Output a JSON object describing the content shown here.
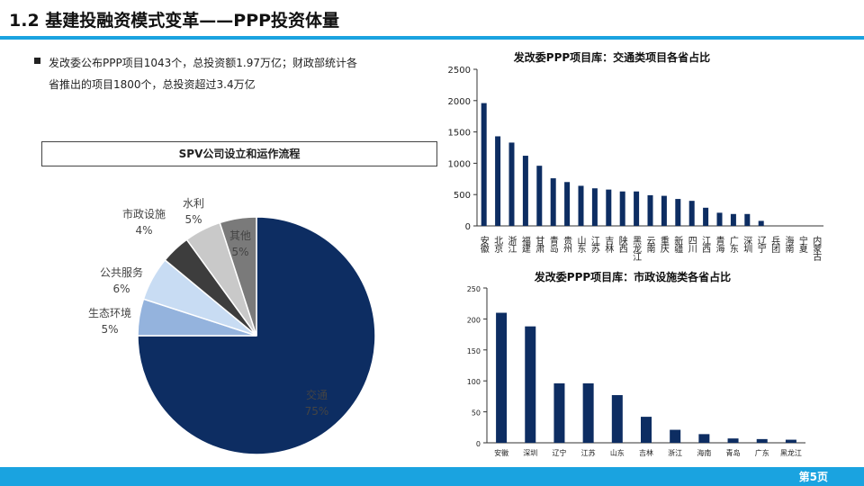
{
  "header": {
    "title": "1.2 基建投融资模式变革——PPP投资体量"
  },
  "bullet": {
    "line1": "发改委公布PPP项目1043个，总投资额1.97万亿；财政部统计各",
    "line2": "省推出的项目1800个，总投资超过3.4万亿"
  },
  "footer": {
    "page": "第5页"
  },
  "colors": {
    "accent": "#1aa3e0",
    "bar": "#0d2d62"
  },
  "chart_data": [
    {
      "type": "pie",
      "title": "SPV公司设立和运作流程",
      "slices": [
        {
          "label": "交通",
          "pct": "75%",
          "value": 75,
          "color": "#0d2d62"
        },
        {
          "label": "生态环境",
          "pct": "5%",
          "value": 5,
          "color": "#94b3dd"
        },
        {
          "label": "公共服务",
          "pct": "6%",
          "value": 6,
          "color": "#c8dcf3"
        },
        {
          "label": "市政设施",
          "pct": "4%",
          "value": 4,
          "color": "#3d3d3d"
        },
        {
          "label": "水利",
          "pct": "5%",
          "value": 5,
          "color": "#c9c9c9"
        },
        {
          "label": "其他",
          "pct": "5%",
          "value": 5,
          "color": "#7a7a7a"
        }
      ]
    },
    {
      "type": "bar",
      "title": "发改委PPP项目库：交通类项目各省占比",
      "categories": [
        "安徽",
        "北京",
        "浙江",
        "福建",
        "甘肃",
        "青岛",
        "贵州",
        "山东",
        "江苏",
        "吉林",
        "陕西",
        "黑龙江",
        "云南",
        "重庆",
        "新疆",
        "四川",
        "江西",
        "青海",
        "广东",
        "深圳",
        "辽宁",
        "兵团",
        "海南",
        "宁夏",
        "内蒙古"
      ],
      "values": [
        1960,
        1430,
        1330,
        1120,
        960,
        760,
        700,
        640,
        600,
        580,
        550,
        550,
        490,
        480,
        430,
        400,
        290,
        210,
        190,
        190,
        80,
        0,
        0,
        0,
        0
      ],
      "ylim": [
        0,
        2500
      ],
      "yticks": [
        0,
        500,
        1000,
        1500,
        2000,
        2500
      ]
    },
    {
      "type": "bar",
      "title": "发改委PPP项目库：市政设施类各省占比",
      "categories": [
        "安徽",
        "深圳",
        "辽宁",
        "江苏",
        "山东",
        "吉林",
        "浙江",
        "海南",
        "青岛",
        "广东",
        "黑龙江"
      ],
      "values": [
        210,
        188,
        96,
        96,
        77,
        42,
        21,
        14,
        7,
        6,
        5
      ],
      "ylim": [
        0,
        250
      ],
      "yticks": [
        0,
        50,
        100,
        150,
        200,
        250
      ]
    }
  ]
}
